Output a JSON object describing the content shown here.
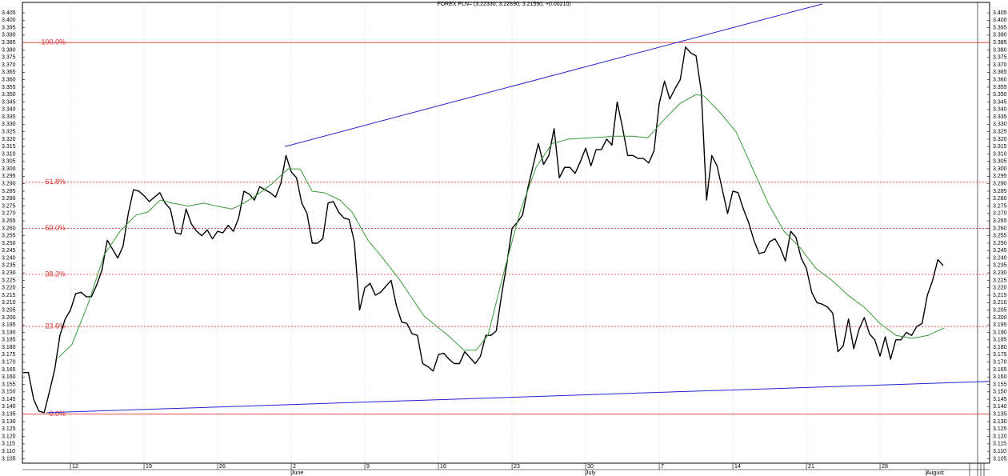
{
  "chart_data": {
    "type": "line",
    "title": "FOREX PLN= (3.22330, 3.22890, 3.21590, +0.00210)",
    "xlim": [
      -4.57,
      87.42
    ],
    "ylim": [
      3.102,
      3.412
    ],
    "xticks": [
      {
        "value": 0,
        "label": "12"
      },
      {
        "value": 7,
        "label": "19"
      },
      {
        "value": 14,
        "label": "26"
      },
      {
        "value": 21,
        "label": "2"
      },
      {
        "value": 28,
        "label": "9"
      },
      {
        "value": 35,
        "label": "16"
      },
      {
        "value": 42,
        "label": "23"
      },
      {
        "value": 49,
        "label": "30"
      },
      {
        "value": 56,
        "label": "7"
      },
      {
        "value": 63,
        "label": "14"
      },
      {
        "value": 70,
        "label": "21"
      },
      {
        "value": 77,
        "label": "28"
      }
    ],
    "month_labels": [
      {
        "value": 21,
        "label": "June"
      },
      {
        "value": 49,
        "label": "July"
      },
      {
        "value": 81.4,
        "label": "August"
      }
    ],
    "yticks": [
      3.105,
      {
        "value": 3.11,
        "label": "3.110"
      },
      3.115,
      {
        "value": 3.12,
        "label": "3.120"
      },
      3.125,
      {
        "value": 3.13,
        "label": "3.130"
      },
      3.135,
      {
        "value": 3.14,
        "label": "3.140"
      },
      3.145,
      {
        "value": 3.15,
        "label": "3.150"
      },
      3.155,
      {
        "value": 3.16,
        "label": "3.160"
      },
      3.165,
      {
        "value": 3.17,
        "label": "3.170"
      },
      3.175,
      {
        "value": 3.18,
        "label": "3.180"
      },
      3.185,
      {
        "value": 3.19,
        "label": "3.190"
      },
      3.195,
      {
        "value": 3.2,
        "label": "3.200"
      },
      3.205,
      {
        "value": 3.21,
        "label": "3.210"
      },
      3.215,
      {
        "value": 3.22,
        "label": "3.220"
      },
      3.225,
      {
        "value": 3.23,
        "label": "3.230"
      },
      3.235,
      {
        "value": 3.24,
        "label": "3.240"
      },
      3.245,
      {
        "value": 3.25,
        "label": "3.250"
      },
      3.255,
      {
        "value": 3.26,
        "label": "3.260"
      },
      3.265,
      {
        "value": 3.27,
        "label": "3.270"
      },
      3.275,
      {
        "value": 3.28,
        "label": "3.280"
      },
      3.285,
      {
        "value": 3.29,
        "label": "3.290"
      },
      3.295,
      {
        "value": 3.3,
        "label": "3.300"
      },
      3.305,
      {
        "value": 3.31,
        "label": "3.310"
      },
      3.315,
      {
        "value": 3.32,
        "label": "3.320"
      },
      3.325,
      {
        "value": 3.33,
        "label": "3.330"
      },
      3.335,
      {
        "value": 3.34,
        "label": "3.340"
      },
      3.345,
      {
        "value": 3.35,
        "label": "3.350"
      },
      3.355,
      {
        "value": 3.36,
        "label": "3.360"
      },
      3.365,
      {
        "value": 3.37,
        "label": "3.370"
      },
      3.375,
      {
        "value": 3.38,
        "label": "3.380"
      },
      3.385,
      {
        "value": 3.39,
        "label": "3.390"
      },
      3.395,
      {
        "value": 3.4,
        "label": "3.400"
      },
      3.405
    ],
    "grid": true,
    "series": [
      {
        "color": "#000000",
        "x": [
          -4.5,
          -4,
          -3.5,
          -3,
          -2.5,
          -2,
          -1.5,
          -1,
          -0.5,
          0,
          0.5,
          1,
          1.5,
          2,
          2.5,
          3,
          3.5,
          4,
          4.5,
          5,
          5.5,
          6,
          6.5,
          7,
          7.5,
          8,
          8.5,
          9,
          9.5,
          10,
          10.5,
          11,
          11.5,
          12,
          12.5,
          13,
          13.5,
          14,
          14.5,
          15,
          15.5,
          16,
          16.5,
          17,
          17.5,
          18,
          18.5,
          19,
          19.5,
          20,
          20.5,
          21,
          21.5,
          22,
          22.5,
          23,
          23.5,
          24,
          24.5,
          25,
          25.5,
          26,
          26.5,
          27,
          27.5,
          28,
          28.5,
          29,
          29.5,
          30,
          30.5,
          31,
          31.5,
          32,
          32.5,
          33,
          33.5,
          34,
          34.5,
          35,
          35.5,
          36,
          36.5,
          37,
          37.5,
          38,
          38.5,
          39,
          39.5,
          40,
          40.5,
          41,
          41.5,
          42,
          42.5,
          43,
          43.5,
          44,
          44.5,
          45,
          45.5,
          46,
          46.5,
          47,
          47.5,
          48,
          48.5,
          49,
          49.5,
          50,
          50.5,
          51,
          51.5,
          52,
          52.5,
          53,
          53.5,
          54,
          54.5,
          55,
          55.5,
          56,
          56.5,
          57,
          57.5,
          58,
          58.5,
          59,
          59.5,
          60,
          60.5,
          61,
          61.5,
          62,
          62.5,
          63,
          63.5,
          64,
          64.5,
          65,
          65.5,
          66,
          66.5,
          67,
          67.5,
          68,
          68.5,
          69,
          69.5,
          70,
          70.5,
          71,
          71.5,
          72,
          72.5,
          73,
          73.5,
          74,
          74.5,
          75,
          75.5,
          76,
          76.5,
          77,
          77.5,
          78,
          78.5,
          79,
          79.5,
          80,
          80.5,
          81,
          81.5,
          82,
          82.5,
          83
        ],
        "values": [
          3.163,
          3.163,
          3.145,
          3.137,
          3.136,
          3.15,
          3.165,
          3.188,
          3.199,
          3.205,
          3.216,
          3.217,
          3.214,
          3.214,
          3.222,
          3.232,
          3.252,
          3.246,
          3.24,
          3.248,
          3.27,
          3.286,
          3.285,
          3.282,
          3.278,
          3.281,
          3.284,
          3.277,
          3.273,
          3.257,
          3.256,
          3.273,
          3.263,
          3.258,
          3.255,
          3.259,
          3.253,
          3.258,
          3.257,
          3.262,
          3.258,
          3.267,
          3.285,
          3.283,
          3.279,
          3.288,
          3.286,
          3.284,
          3.281,
          3.29,
          3.309,
          3.298,
          3.294,
          3.277,
          3.27,
          3.25,
          3.25,
          3.253,
          3.277,
          3.278,
          3.271,
          3.267,
          3.266,
          3.251,
          3.205,
          3.22,
          3.223,
          3.215,
          3.217,
          3.221,
          3.225,
          3.208,
          3.197,
          3.196,
          3.189,
          3.188,
          3.169,
          3.167,
          3.164,
          3.175,
          3.176,
          3.172,
          3.169,
          3.169,
          3.177,
          3.173,
          3.169,
          3.174,
          3.188,
          3.188,
          3.191,
          3.215,
          3.236,
          3.26,
          3.264,
          3.269,
          3.287,
          3.302,
          3.317,
          3.303,
          3.309,
          3.327,
          3.294,
          3.301,
          3.301,
          3.297,
          3.305,
          3.314,
          3.302,
          3.313,
          3.313,
          3.32,
          3.316,
          3.345,
          3.328,
          3.309,
          3.309,
          3.307,
          3.307,
          3.304,
          3.312,
          3.344,
          3.359,
          3.347,
          3.354,
          3.36,
          3.382,
          3.378,
          3.376,
          3.352,
          3.279,
          3.309,
          3.302,
          3.286,
          3.27,
          3.285,
          3.284,
          3.273,
          3.264,
          3.252,
          3.243,
          3.244,
          3.251,
          3.253,
          3.247,
          3.238,
          3.258,
          3.254,
          3.24,
          3.233,
          3.217,
          3.21,
          3.209,
          3.207,
          3.203,
          3.177,
          3.181,
          3.199,
          3.179,
          3.192,
          3.2,
          3.189,
          3.185,
          3.174,
          3.187,
          3.172,
          3.185,
          3.185,
          3.19,
          3.188,
          3.194,
          3.196,
          3.215,
          3.225,
          3.239,
          3.235
        ]
      },
      {
        "color": "#3a9a3a",
        "x": [
          -1.14,
          0.15,
          1.67,
          3.2,
          4.72,
          6.24,
          7.38,
          8.52,
          9.66,
          11.19,
          12.71,
          13.85,
          15.37,
          16.51,
          17.65,
          19.17,
          20.69,
          21.84,
          22.98,
          24.12,
          25.64,
          26.78,
          28.3,
          29.82,
          31.35,
          33.63,
          35.91,
          37.43,
          38.57,
          39.71,
          41.24,
          42.76,
          44.28,
          45.8,
          47.33,
          49.61,
          51.89,
          53.41,
          54.93,
          56.45,
          57.97,
          59.5,
          60.26,
          61.78,
          63.3,
          64.83,
          66.35,
          67.87,
          69.39,
          70.91,
          72.43,
          73.95,
          75.48,
          77,
          78.52,
          80.04,
          81.56,
          83.09
        ],
        "values": [
          3.173,
          3.182,
          3.209,
          3.242,
          3.258,
          3.269,
          3.271,
          3.279,
          3.277,
          3.275,
          3.277,
          3.275,
          3.273,
          3.277,
          3.282,
          3.29,
          3.3,
          3.3,
          3.285,
          3.284,
          3.279,
          3.271,
          3.252,
          3.239,
          3.225,
          3.201,
          3.188,
          3.178,
          3.178,
          3.188,
          3.231,
          3.271,
          3.301,
          3.317,
          3.32,
          3.321,
          3.322,
          3.322,
          3.321,
          3.333,
          3.344,
          3.35,
          3.349,
          3.338,
          3.325,
          3.301,
          3.277,
          3.258,
          3.247,
          3.233,
          3.225,
          3.215,
          3.207,
          3.196,
          3.188,
          3.186,
          3.188,
          3.193
        ]
      }
    ],
    "trendlines": [
      {
        "color": "#2222cc",
        "x": [
          20.39,
          71.52
        ],
        "values": [
          3.315,
          3.411
        ]
      },
      {
        "color": "#2222cc",
        "x": [
          -2.28,
          87.42
        ],
        "values": [
          3.136,
          3.157
        ]
      }
    ],
    "levels": [
      {
        "value": 3.385,
        "label": "100.0%",
        "dashed": false
      },
      {
        "value": 3.291,
        "label": "61.8%",
        "dashed": true
      },
      {
        "value": 3.26,
        "label": "50.0%",
        "dashed": true
      },
      {
        "value": 3.229,
        "label": "38.2%",
        "dashed": true
      },
      {
        "value": 3.194,
        "label": "23.6%",
        "dashed": true
      },
      {
        "value": 3.135,
        "label": "0.0%",
        "dashed": false
      }
    ],
    "level_color": "#e03030"
  }
}
